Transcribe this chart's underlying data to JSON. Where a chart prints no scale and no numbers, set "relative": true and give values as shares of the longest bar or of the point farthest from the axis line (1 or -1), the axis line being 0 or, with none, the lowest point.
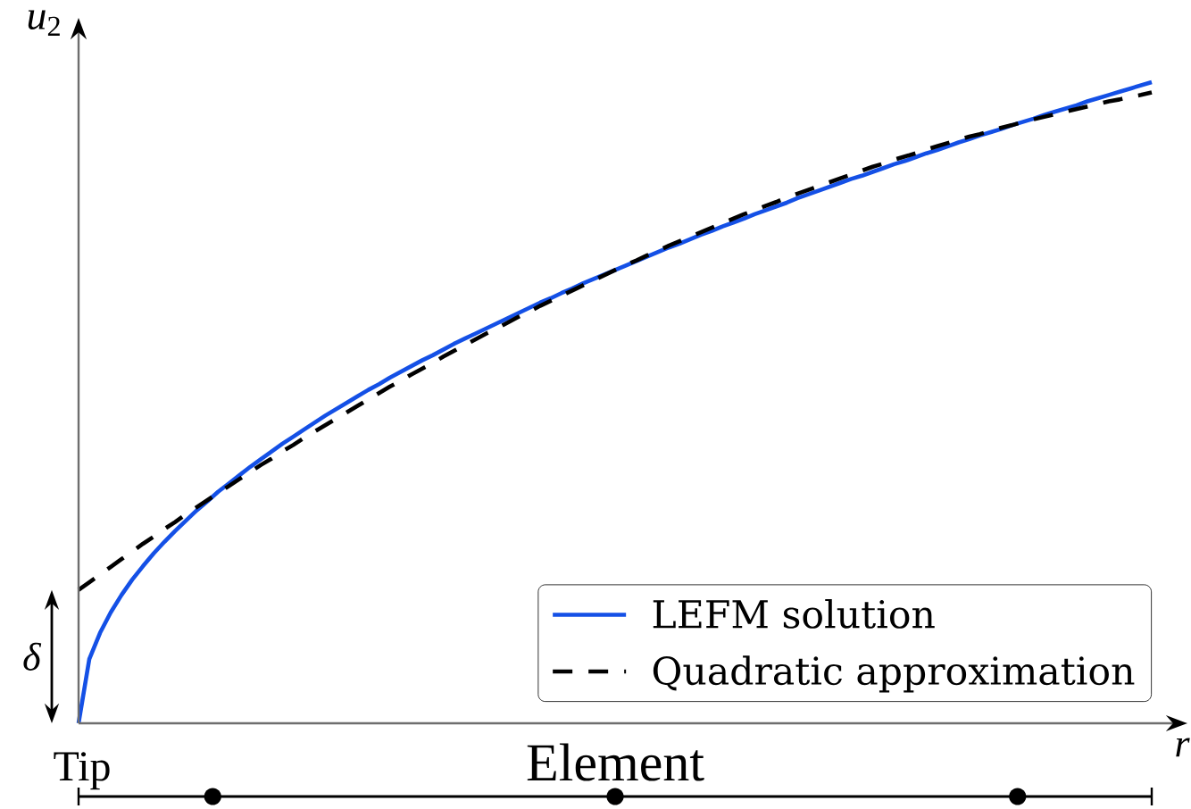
{
  "chart_data": {
    "type": "line",
    "ylabel": "*u*$_{2}$",
    "xlabel": "r",
    "relative": true,
    "legend": "bottom right",
    "categories": [
      null,
      null,
      null,
      null,
      null,
      null,
      null,
      null,
      null,
      null,
      null,
      null,
      null,
      null,
      null,
      null,
      null,
      null,
      null,
      null,
      null,
      null,
      null,
      null,
      null,
      null,
      null,
      null,
      null,
      null,
      null,
      null,
      null,
      null,
      null,
      null,
      null,
      null,
      null,
      null,
      null,
      null,
      null,
      null,
      null,
      null,
      null,
      null,
      null,
      null,
      null,
      null,
      null,
      null,
      null,
      null,
      null,
      null,
      null,
      null,
      null,
      null,
      null,
      null,
      null,
      null,
      null,
      null,
      null,
      null,
      null,
      null,
      null,
      null,
      null,
      null,
      null,
      null,
      null,
      null,
      null,
      null,
      null,
      null,
      null,
      null,
      null,
      null,
      null,
      null,
      null,
      null,
      null,
      null,
      null,
      null,
      null,
      null,
      null,
      null,
      null
    ],
    "series": [
      {
        "name": "LEFM solution",
        "color": "#1450e6",
        "line_style": "solid",
        "values": [
          0,
          0.1,
          0.141,
          0.173,
          0.2,
          0.224,
          0.245,
          0.265,
          0.283,
          0.3,
          0.316,
          0.332,
          0.346,
          0.361,
          0.374,
          0.387,
          0.4,
          0.412,
          0.424,
          0.436,
          0.447,
          0.458,
          0.469,
          0.48,
          0.49,
          0.5,
          0.51,
          0.52,
          0.529,
          0.539,
          0.548,
          0.557,
          0.566,
          0.574,
          0.583,
          0.592,
          0.6,
          0.608,
          0.616,
          0.624,
          0.632,
          0.64,
          0.648,
          0.656,
          0.663,
          0.671,
          0.678,
          0.686,
          0.693,
          0.7,
          0.707,
          0.714,
          0.721,
          0.728,
          0.735,
          0.742,
          0.748,
          0.755,
          0.762,
          0.768,
          0.775,
          0.781,
          0.787,
          0.794,
          0.8,
          0.806,
          0.812,
          0.819,
          0.825,
          0.831,
          0.837,
          0.843,
          0.849,
          0.854,
          0.86,
          0.866,
          0.872,
          0.877,
          0.883,
          0.889,
          0.894,
          0.9,
          0.906,
          0.911,
          0.917,
          0.922,
          0.927,
          0.933,
          0.938,
          0.943,
          0.949,
          0.954,
          0.959,
          0.964,
          0.97,
          0.975,
          0.98,
          0.985,
          0.99,
          0.995,
          1
        ]
      },
      {
        "name": "Quadratic approximation",
        "color": "#000000",
        "line_style": "dashed",
        "values": [
          0.208,
          0.22,
          0.232,
          0.244,
          0.256,
          0.268,
          0.28,
          0.291,
          0.303,
          0.314,
          0.326,
          0.337,
          0.348,
          0.359,
          0.37,
          0.381,
          0.392,
          0.403,
          0.413,
          0.424,
          0.434,
          0.445,
          0.455,
          0.465,
          0.475,
          0.485,
          0.495,
          0.505,
          0.515,
          0.525,
          0.534,
          0.544,
          0.553,
          0.562,
          0.572,
          0.581,
          0.59,
          0.599,
          0.608,
          0.616,
          0.625,
          0.634,
          0.642,
          0.651,
          0.659,
          0.667,
          0.675,
          0.683,
          0.691,
          0.699,
          0.707,
          0.715,
          0.722,
          0.73,
          0.737,
          0.745,
          0.752,
          0.759,
          0.766,
          0.773,
          0.78,
          0.787,
          0.794,
          0.8,
          0.807,
          0.813,
          0.82,
          0.826,
          0.832,
          0.838,
          0.844,
          0.85,
          0.856,
          0.862,
          0.868,
          0.873,
          0.879,
          0.884,
          0.889,
          0.895,
          0.9,
          0.905,
          0.91,
          0.915,
          0.919,
          0.924,
          0.929,
          0.933,
          0.938,
          0.942,
          0.946,
          0.95,
          0.954,
          0.958,
          0.962,
          0.966,
          0.97,
          0.973,
          0.977,
          0.98,
          0.984
        ]
      }
    ],
    "annotations": [
      "δ",
      "Tip",
      "Element"
    ]
  }
}
